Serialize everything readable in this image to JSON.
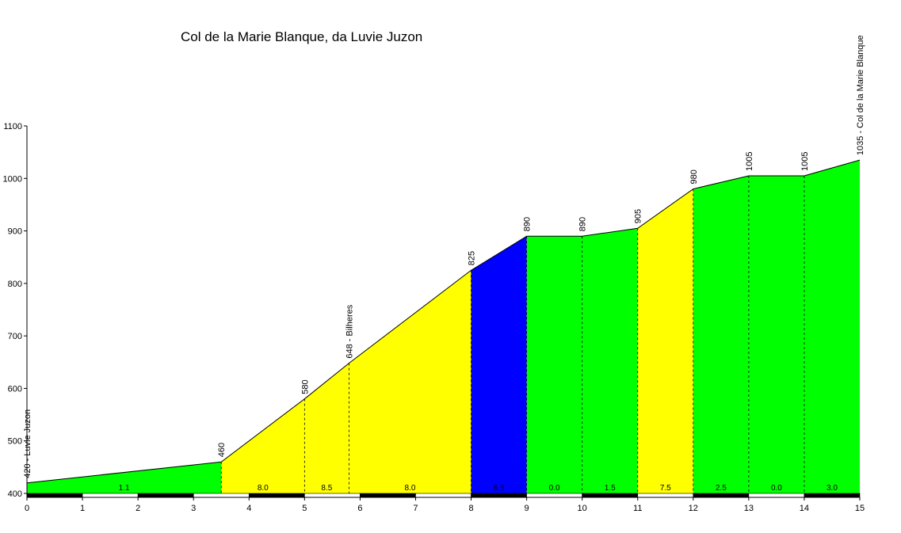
{
  "chart_data": {
    "type": "area",
    "title": "Col de la Marie Blanque, da Luvie Juzon",
    "xlabel": "",
    "ylabel": "",
    "xlim": [
      0,
      15
    ],
    "ylim": [
      400,
      1100
    ],
    "x_ticks": [
      "0",
      "1",
      "2",
      "3",
      "4",
      "5",
      "6",
      "7",
      "8",
      "9",
      "10",
      "11",
      "12",
      "13",
      "14",
      "15"
    ],
    "y_ticks": [
      "400",
      "500",
      "600",
      "700",
      "800",
      "900",
      "1000",
      "1100"
    ],
    "grid": false,
    "profile": [
      {
        "km": 0,
        "alt": 420,
        "label": "420 - Luvie Juzon"
      },
      {
        "km": 3.5,
        "alt": 460,
        "label": "460"
      },
      {
        "km": 5,
        "alt": 580,
        "label": "580"
      },
      {
        "km": 5.8,
        "alt": 648,
        "label": "648 - Bilheres"
      },
      {
        "km": 8,
        "alt": 825,
        "label": "825"
      },
      {
        "km": 9,
        "alt": 890,
        "label": "890"
      },
      {
        "km": 10,
        "alt": 890,
        "label": "890"
      },
      {
        "km": 11,
        "alt": 905,
        "label": "905"
      },
      {
        "km": 12,
        "alt": 980,
        "label": "980"
      },
      {
        "km": 13,
        "alt": 1005,
        "label": "1005"
      },
      {
        "km": 14,
        "alt": 1005,
        "label": "1005"
      },
      {
        "km": 15,
        "alt": 1035,
        "label": "1035 - Col de la Marie Blanque"
      }
    ],
    "segments": [
      {
        "from": 0,
        "to": 3.5,
        "gradient": "1.1",
        "color": "#00ff00"
      },
      {
        "from": 3.5,
        "to": 5,
        "gradient": "8.0",
        "color": "#ffff00"
      },
      {
        "from": 5,
        "to": 5.8,
        "gradient": "8.5",
        "color": "#ffff00"
      },
      {
        "from": 5.8,
        "to": 8,
        "gradient": "8.0",
        "color": "#ffff00"
      },
      {
        "from": 8,
        "to": 9,
        "gradient": "6.5",
        "color": "#0000ff"
      },
      {
        "from": 9,
        "to": 10,
        "gradient": "0.0",
        "color": "#00ff00"
      },
      {
        "from": 10,
        "to": 11,
        "gradient": "1.5",
        "color": "#00ff00"
      },
      {
        "from": 11,
        "to": 12,
        "gradient": "7.5",
        "color": "#ffff00"
      },
      {
        "from": 12,
        "to": 13,
        "gradient": "2.5",
        "color": "#00ff00"
      },
      {
        "from": 13,
        "to": 14,
        "gradient": "0.0",
        "color": "#00ff00"
      },
      {
        "from": 14,
        "to": 15,
        "gradient": "3.0",
        "color": "#00ff00"
      }
    ]
  }
}
